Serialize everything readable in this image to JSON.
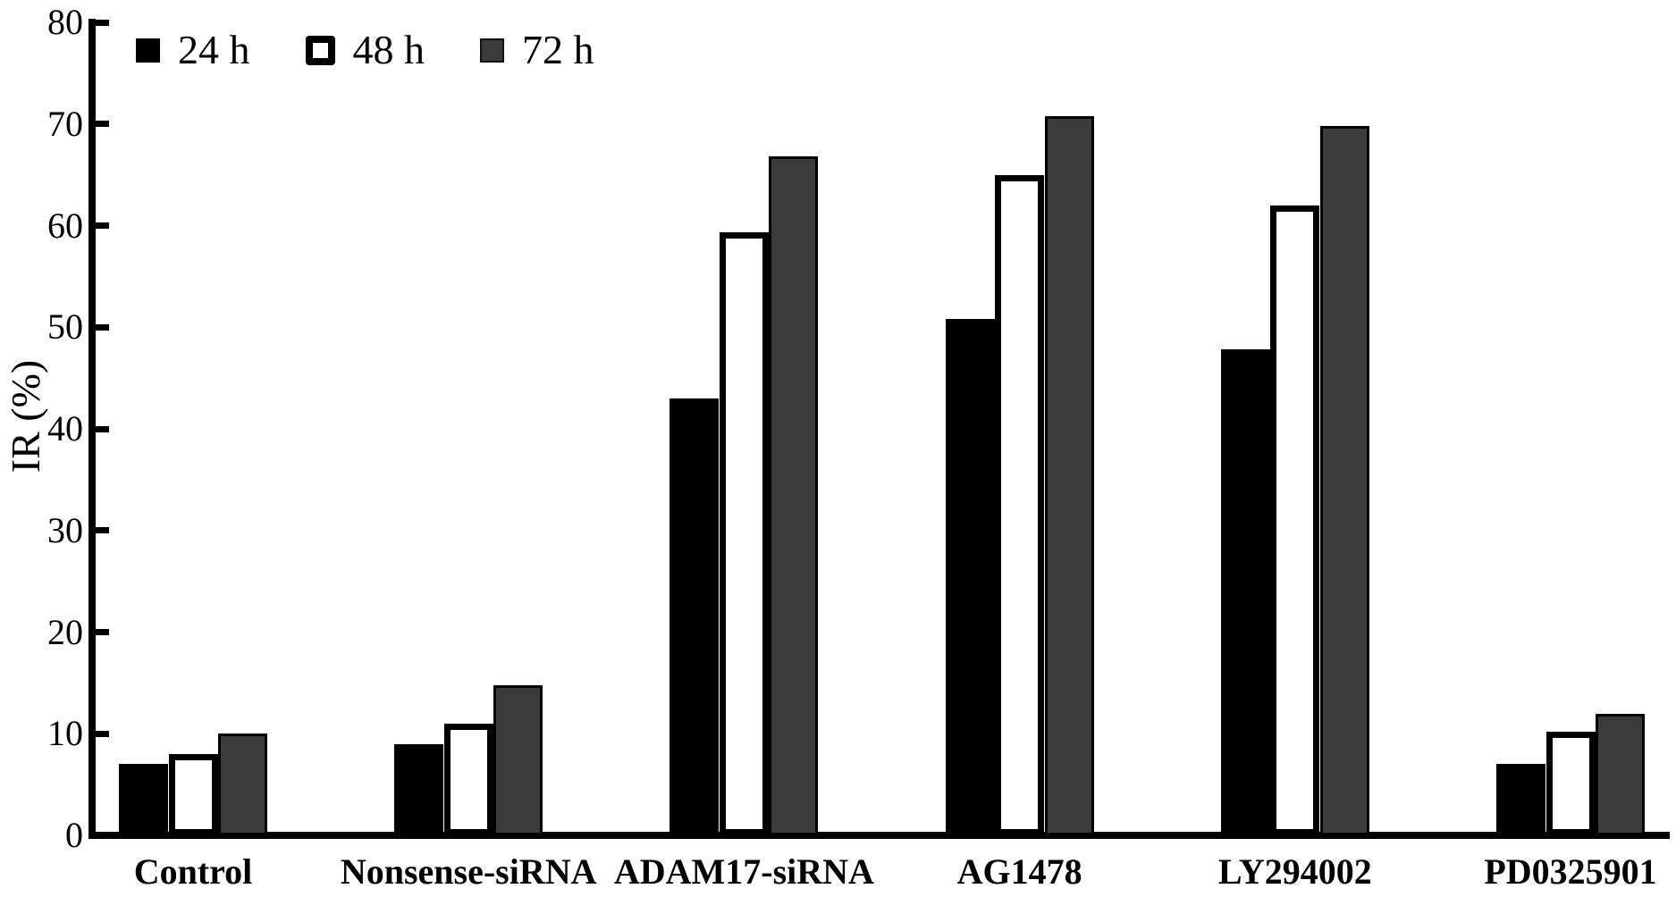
{
  "figure": {
    "ylabel": "IR (%)"
  },
  "chart_data": {
    "type": "bar",
    "title": "",
    "xlabel": "",
    "ylabel": "IR (%)",
    "ylim": [
      0,
      80
    ],
    "yticks": [
      0,
      10,
      20,
      30,
      40,
      50,
      60,
      70,
      80
    ],
    "grid": false,
    "legend_position": "top-left",
    "categories": [
      "Control",
      "Nonsense-siRNA",
      "ADAM17-siRNA",
      "AG1478",
      "LY294002",
      "PD0325901"
    ],
    "series": [
      {
        "name": "24 h",
        "style": "black",
        "values": [
          7,
          9,
          43,
          50.8,
          47.8,
          7
        ]
      },
      {
        "name": "48 h",
        "style": "white",
        "values": [
          8,
          11,
          59.3,
          65,
          62,
          10.2
        ]
      },
      {
        "name": "72 h",
        "style": "gray",
        "values": [
          10,
          14.8,
          66.8,
          70.8,
          69.8,
          12
        ]
      }
    ],
    "colors": {
      "black": "#000000",
      "white": "#ffffff",
      "gray": "#3b3b3b",
      "outline": "#000000"
    }
  }
}
